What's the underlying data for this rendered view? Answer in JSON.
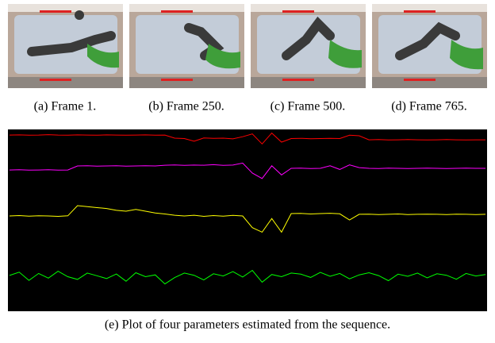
{
  "subfigures": [
    {
      "caption": "(a) Frame 1."
    },
    {
      "caption": "(b) Frame 250."
    },
    {
      "caption": "(c) Frame 500."
    },
    {
      "caption": "(d) Frame 765."
    }
  ],
  "chart_data": {
    "type": "line",
    "caption": "(e) Plot of four parameters estimated from the sequence.",
    "background": "#000000",
    "ylim": [
      0,
      100
    ],
    "series": [
      {
        "color": "#ff0000",
        "values": [
          96.9,
          97.0,
          96.8,
          96.9,
          97.1,
          96.9,
          96.8,
          97.0,
          96.9,
          96.8,
          97.0,
          96.9,
          96.8,
          96.9,
          97.0,
          96.8,
          96.9,
          95.2,
          95.0,
          93.5,
          95.3,
          95.1,
          95.2,
          94.8,
          96.0,
          97.5,
          92.0,
          98.0,
          93.0,
          95.0,
          95.1,
          94.9,
          95.0,
          95.1,
          95.0,
          96.8,
          96.5,
          94.3,
          94.4,
          94.2,
          94.3,
          94.4,
          94.3,
          94.2,
          94.3,
          94.4,
          94.3,
          94.2,
          94.3,
          94.3
        ]
      },
      {
        "color": "#ff00ff",
        "values": [
          77.7,
          77.8,
          77.6,
          77.7,
          77.8,
          77.6,
          77.7,
          79.9,
          80.0,
          79.8,
          79.9,
          80.0,
          79.8,
          79.9,
          80.0,
          79.9,
          80.3,
          80.5,
          80.2,
          80.4,
          80.3,
          80.6,
          80.2,
          80.4,
          81.5,
          76.0,
          73.0,
          80.0,
          75.0,
          78.6,
          78.7,
          78.5,
          78.6,
          80.0,
          78.0,
          80.5,
          79.0,
          78.6,
          78.5,
          78.7,
          78.6,
          78.5,
          78.6,
          78.7,
          78.6,
          78.5,
          78.6,
          78.7,
          78.6,
          78.6
        ]
      },
      {
        "color": "#ffff00",
        "values": [
          52.4,
          52.6,
          52.3,
          52.5,
          52.4,
          52.2,
          52.5,
          58.1,
          57.5,
          57.0,
          56.5,
          55.5,
          55.0,
          56.0,
          55.0,
          54.0,
          53.5,
          52.8,
          52.4,
          52.8,
          52.2,
          52.6,
          52.3,
          52.7,
          52.4,
          46.0,
          43.5,
          51.0,
          43.5,
          53.7,
          53.8,
          53.5,
          53.7,
          53.9,
          53.6,
          50.2,
          53.3,
          53.4,
          53.2,
          53.3,
          53.5,
          53.2,
          53.3,
          53.4,
          53.3,
          53.2,
          53.4,
          53.3,
          53.2,
          53.3
        ]
      },
      {
        "color": "#00ff00",
        "values": [
          19.7,
          21.5,
          17.0,
          20.8,
          18.2,
          22.0,
          19.0,
          17.5,
          21.0,
          19.5,
          18.0,
          20.5,
          16.5,
          21.2,
          19.0,
          20.0,
          15.0,
          18.5,
          21.0,
          19.8,
          17.2,
          20.6,
          19.4,
          21.8,
          18.8,
          22.5,
          16.0,
          20.2,
          19.0,
          21.0,
          20.4,
          18.6,
          21.4,
          19.2,
          20.8,
          17.8,
          20.0,
          21.2,
          19.6,
          16.8,
          20.4,
          19.2,
          21.0,
          18.4,
          20.6,
          19.8,
          17.6,
          20.8,
          19.4,
          20.2
        ]
      }
    ]
  }
}
